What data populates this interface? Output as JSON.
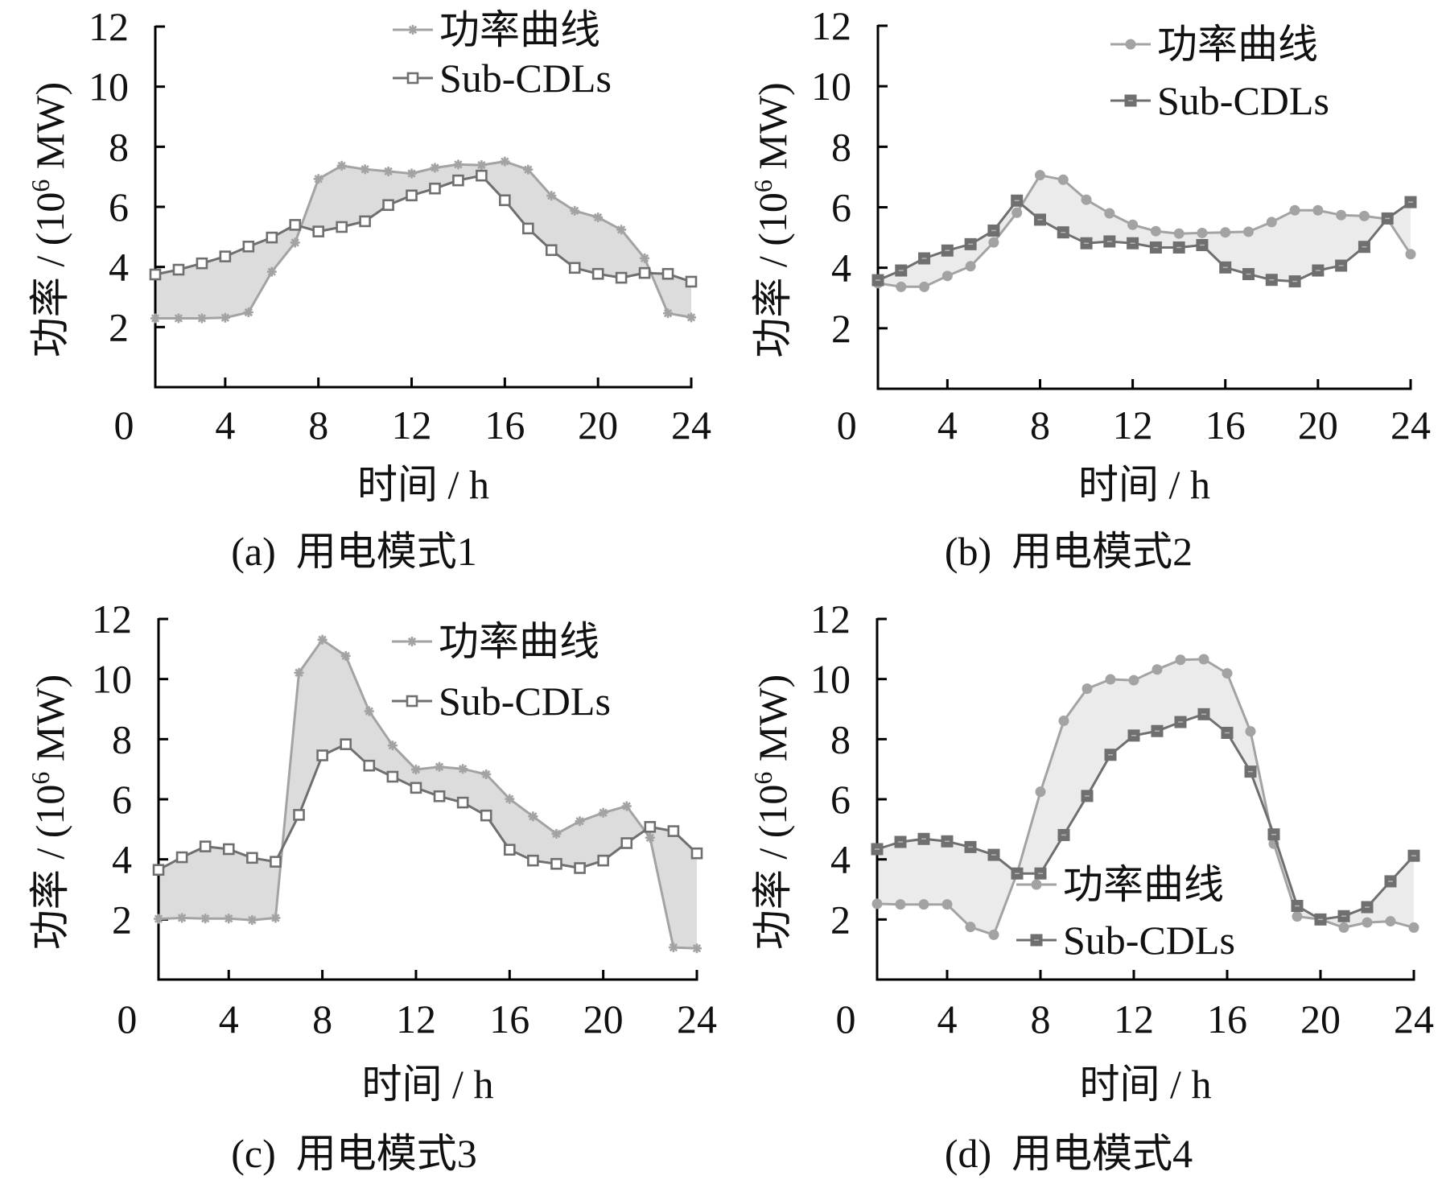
{
  "colors": {
    "power_line": "#a3a3a3",
    "sub_line": "#6f6f6f",
    "fill_dark": "#dcdcdc",
    "fill_light": "#ebebeb",
    "axis": "#000000"
  },
  "chart_data": [
    {
      "type": "line",
      "panel": "a",
      "caption": "(a)  用电模式1",
      "xlabel": "时间 / h",
      "ylabel": "功率 / (10",
      "ylabel_sup": "6",
      "ylabel_unit": " MW)",
      "xlim": [
        1,
        24
      ],
      "ylim": [
        0,
        12
      ],
      "xticks": [
        0,
        4,
        8,
        12,
        16,
        20,
        24
      ],
      "yticks": [
        2,
        4,
        6,
        8,
        10,
        12
      ],
      "x": [
        1,
        2,
        3,
        4,
        5,
        6,
        7,
        8,
        9,
        10,
        11,
        12,
        13,
        14,
        15,
        16,
        17,
        18,
        19,
        20,
        21,
        22,
        23,
        24
      ],
      "fill_between": true,
      "legend_position": "top-right",
      "series": [
        {
          "name": "功率曲线",
          "marker": "asterisk",
          "values": [
            2.29,
            2.29,
            2.29,
            2.31,
            2.49,
            3.84,
            4.81,
            6.93,
            7.37,
            7.25,
            7.18,
            7.11,
            7.3,
            7.41,
            7.39,
            7.51,
            7.24,
            6.37,
            5.87,
            5.65,
            5.24,
            4.29,
            2.46,
            2.32
          ]
        },
        {
          "name": "Sub-CDLs",
          "marker": "hollow-square",
          "values": [
            3.75,
            3.91,
            4.12,
            4.35,
            4.68,
            4.98,
            5.4,
            5.18,
            5.33,
            5.52,
            6.06,
            6.38,
            6.61,
            6.88,
            7.04,
            6.22,
            5.28,
            4.56,
            3.97,
            3.77,
            3.64,
            3.8,
            3.77,
            3.51
          ]
        }
      ]
    },
    {
      "type": "line",
      "panel": "b",
      "caption": "(b)  用电模式2",
      "xlabel": "时间 / h",
      "ylabel": "功率 / (10",
      "ylabel_sup": "6",
      "ylabel_unit": " MW)",
      "xlim": [
        1,
        24
      ],
      "ylim": [
        0,
        12
      ],
      "xticks": [
        0,
        4,
        8,
        12,
        16,
        20,
        24
      ],
      "yticks": [
        2,
        4,
        6,
        8,
        10,
        12
      ],
      "x": [
        1,
        2,
        3,
        4,
        5,
        6,
        7,
        8,
        9,
        10,
        11,
        12,
        13,
        14,
        15,
        16,
        17,
        18,
        19,
        20,
        21,
        22,
        23,
        24
      ],
      "fill_between": true,
      "legend_position": "top-right",
      "series": [
        {
          "name": "功率曲线",
          "marker": "circle",
          "values": [
            3.49,
            3.37,
            3.37,
            3.73,
            4.05,
            4.84,
            5.82,
            7.06,
            6.91,
            6.25,
            5.8,
            5.42,
            5.21,
            5.13,
            5.15,
            5.17,
            5.19,
            5.51,
            5.9,
            5.9,
            5.74,
            5.71,
            5.61,
            4.45
          ]
        },
        {
          "name": "Sub-CDLs",
          "marker": "filled-square",
          "values": [
            3.59,
            3.91,
            4.31,
            4.57,
            4.78,
            5.23,
            6.22,
            5.59,
            5.17,
            4.81,
            4.87,
            4.81,
            4.67,
            4.67,
            4.75,
            4.01,
            3.79,
            3.6,
            3.55,
            3.91,
            4.07,
            4.69,
            5.63,
            6.17
          ]
        }
      ]
    },
    {
      "type": "line",
      "panel": "c",
      "caption": "(c)  用电模式3",
      "xlabel": "时间 / h",
      "ylabel": "功率 / (10",
      "ylabel_sup": "6",
      "ylabel_unit": " MW)",
      "xlim": [
        1,
        24
      ],
      "ylim": [
        0,
        12
      ],
      "xticks": [
        0,
        4,
        8,
        12,
        16,
        20,
        24
      ],
      "yticks": [
        2,
        4,
        6,
        8,
        10,
        12
      ],
      "x": [
        1,
        2,
        3,
        4,
        5,
        6,
        7,
        8,
        9,
        10,
        11,
        12,
        13,
        14,
        15,
        16,
        17,
        18,
        19,
        20,
        21,
        22,
        23,
        24
      ],
      "fill_between": true,
      "legend_position": "top-right",
      "series": [
        {
          "name": "功率曲线",
          "marker": "asterisk",
          "values": [
            2.02,
            2.05,
            2.03,
            2.03,
            1.98,
            2.05,
            10.21,
            11.31,
            10.77,
            8.93,
            7.79,
            6.99,
            7.08,
            7.01,
            6.83,
            6.01,
            5.43,
            4.85,
            5.27,
            5.55,
            5.77,
            4.72,
            1.07,
            1.04
          ]
        },
        {
          "name": "Sub-CDLs",
          "marker": "hollow-square",
          "values": [
            3.65,
            4.07,
            4.43,
            4.34,
            4.05,
            3.92,
            5.48,
            7.46,
            7.83,
            7.12,
            6.75,
            6.38,
            6.1,
            5.89,
            5.46,
            4.32,
            3.96,
            3.85,
            3.71,
            3.96,
            4.54,
            5.08,
            4.94,
            4.2
          ]
        }
      ]
    },
    {
      "type": "line",
      "panel": "d",
      "caption": "(d)  用电模式4",
      "xlabel": "时间 / h",
      "ylabel": "功率 / (10",
      "ylabel_sup": "6",
      "ylabel_unit": " MW)",
      "xlim": [
        1,
        24
      ],
      "ylim": [
        0,
        12
      ],
      "xticks": [
        0,
        4,
        8,
        12,
        16,
        20,
        24
      ],
      "yticks": [
        2,
        4,
        6,
        8,
        10,
        12
      ],
      "x": [
        1,
        2,
        3,
        4,
        5,
        6,
        7,
        8,
        9,
        10,
        11,
        12,
        13,
        14,
        15,
        16,
        17,
        18,
        19,
        20,
        21,
        22,
        23,
        24
      ],
      "fill_between": true,
      "legend_position": "bottom-center",
      "series": [
        {
          "name": "功率曲线",
          "marker": "circle",
          "values": [
            2.52,
            2.5,
            2.5,
            2.5,
            1.75,
            1.49,
            3.54,
            6.25,
            8.61,
            9.68,
            9.99,
            9.96,
            10.32,
            10.64,
            10.66,
            10.19,
            8.26,
            4.52,
            2.1,
            2.0,
            1.73,
            1.9,
            1.94,
            1.73
          ]
        },
        {
          "name": "Sub-CDLs",
          "marker": "filled-square",
          "values": [
            4.34,
            4.58,
            4.68,
            4.6,
            4.41,
            4.15,
            3.53,
            3.53,
            4.81,
            6.11,
            7.48,
            8.12,
            8.27,
            8.57,
            8.83,
            8.21,
            6.92,
            4.83,
            2.45,
            2.0,
            2.11,
            2.41,
            3.27,
            4.12
          ]
        }
      ]
    }
  ]
}
